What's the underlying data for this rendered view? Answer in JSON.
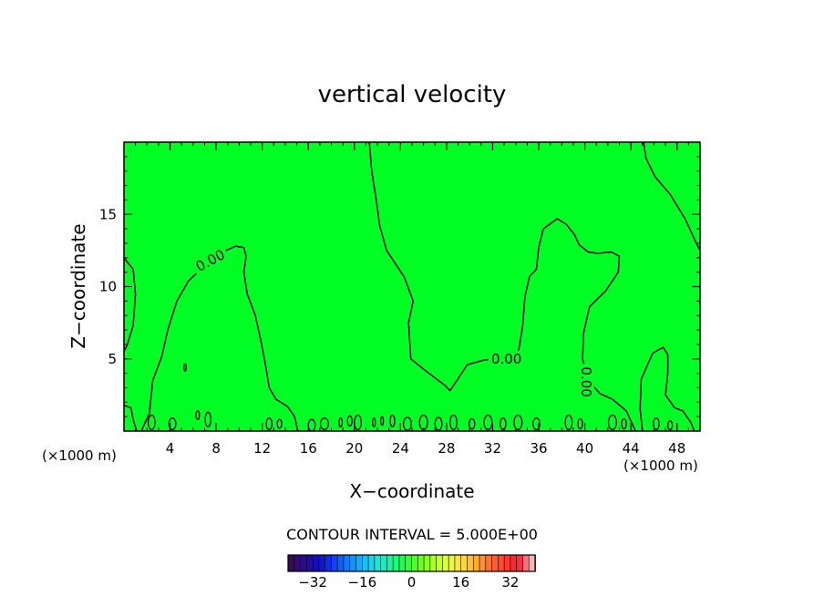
{
  "chart_data": {
    "type": "contour",
    "title": "vertical velocity",
    "xlabel": "X−coordinate",
    "ylabel": "Z−coordinate",
    "x_unit_left": "(×1000 m)",
    "x_unit_right": "(×1000 m)",
    "xlim": [
      0,
      50
    ],
    "ylim": [
      0,
      20
    ],
    "x_ticks": [
      4,
      8,
      12,
      16,
      20,
      24,
      28,
      32,
      36,
      40,
      44,
      48
    ],
    "y_ticks": [
      5,
      10,
      15
    ],
    "x_tick_labels": [
      "4",
      "8",
      "12",
      "16",
      "20",
      "24",
      "28",
      "32",
      "36",
      "40",
      "44",
      "48"
    ],
    "y_tick_labels": [
      "5",
      "10",
      "15"
    ],
    "fill_color": "#00ff22",
    "contour_labels": [
      {
        "text": "0.00",
        "x": 7.5,
        "y": 11.8,
        "angle": -28
      },
      {
        "text": "0.00",
        "x": 33.2,
        "y": 5.0,
        "angle": 0
      },
      {
        "text": "0.00",
        "x": 40.1,
        "y": 3.4,
        "angle": 90
      }
    ],
    "contour_lines": [
      [
        [
          1.5,
          0
        ],
        [
          2.2,
          1.2
        ],
        [
          2.5,
          3.5
        ],
        [
          3.3,
          5.2
        ],
        [
          3.8,
          7.0
        ],
        [
          4.6,
          9.0
        ],
        [
          5.6,
          10.4
        ],
        [
          6.8,
          11.3
        ],
        [
          8.3,
          12.3
        ],
        [
          9.7,
          12.8
        ],
        [
          10.4,
          12.7
        ],
        [
          10.6,
          12.1
        ],
        [
          10.4,
          11.0
        ],
        [
          10.7,
          9.5
        ],
        [
          11.4,
          8.0
        ],
        [
          11.9,
          6.2
        ],
        [
          12.3,
          4.5
        ],
        [
          12.6,
          3.0
        ],
        [
          13.2,
          2.2
        ],
        [
          14.2,
          1.7
        ],
        [
          14.8,
          1.0
        ],
        [
          15.1,
          0
        ]
      ],
      [
        [
          21.3,
          20
        ],
        [
          21.5,
          18.0
        ],
        [
          21.9,
          16.0
        ],
        [
          22.2,
          14.2
        ],
        [
          22.8,
          12.5
        ],
        [
          24.3,
          10.7
        ],
        [
          25.1,
          9.0
        ],
        [
          24.7,
          7.5
        ],
        [
          24.9,
          5.0
        ],
        [
          26.3,
          4.1
        ],
        [
          27.8,
          3.2
        ],
        [
          28.3,
          2.8
        ],
        [
          28.9,
          3.5
        ],
        [
          29.8,
          4.6
        ],
        [
          31.2,
          4.9
        ],
        [
          32.1,
          5.0
        ],
        [
          34.0,
          5.0
        ],
        [
          34.3,
          5.8
        ],
        [
          34.6,
          7.2
        ],
        [
          34.8,
          9.3
        ],
        [
          35.2,
          10.7
        ],
        [
          35.8,
          11.2
        ],
        [
          36.0,
          12.7
        ],
        [
          36.4,
          14.0
        ],
        [
          37.6,
          14.7
        ],
        [
          38.4,
          14.3
        ],
        [
          39.1,
          13.6
        ],
        [
          39.5,
          12.9
        ],
        [
          40.3,
          12.4
        ],
        [
          41.1,
          12.3
        ],
        [
          42.3,
          12.4
        ],
        [
          43.0,
          12.1
        ],
        [
          42.9,
          11.0
        ],
        [
          41.8,
          9.7
        ],
        [
          40.4,
          8.6
        ],
        [
          39.9,
          6.8
        ],
        [
          39.8,
          5.0
        ],
        [
          40.3,
          3.5
        ],
        [
          41.3,
          2.6
        ],
        [
          42.4,
          2.2
        ],
        [
          43.6,
          1.4
        ],
        [
          44.4,
          0
        ]
      ],
      [
        [
          45.1,
          20
        ],
        [
          45.3,
          18.9
        ],
        [
          46.1,
          17.6
        ],
        [
          47.4,
          16.4
        ],
        [
          48.7,
          14.7
        ],
        [
          49.5,
          13.3
        ],
        [
          50,
          12.5
        ]
      ],
      [
        [
          0,
          12
        ],
        [
          0.8,
          11.2
        ],
        [
          1.0,
          9.5
        ],
        [
          0.8,
          7.3
        ],
        [
          0.3,
          6.0
        ],
        [
          0,
          5.5
        ]
      ],
      [
        [
          45.0,
          0
        ],
        [
          44.8,
          1.5
        ],
        [
          44.9,
          3.6
        ],
        [
          45.9,
          5.4
        ],
        [
          46.8,
          5.8
        ],
        [
          47.2,
          5.3
        ],
        [
          47.2,
          4.0
        ],
        [
          47.0,
          2.5
        ],
        [
          47.8,
          1.6
        ],
        [
          48.5,
          1.4
        ],
        [
          49.2,
          0.6
        ],
        [
          49.5,
          0
        ]
      ],
      [
        [
          0,
          1.8
        ],
        [
          0.6,
          1.6
        ],
        [
          0.8,
          0.8
        ],
        [
          1.1,
          0
        ]
      ]
    ],
    "contour_blobs": [
      {
        "x": 2.4,
        "y": 0.6,
        "rx": 0.3,
        "ry": 0.5
      },
      {
        "x": 4.2,
        "y": 0.5,
        "rx": 0.3,
        "ry": 0.4
      },
      {
        "x": 5.3,
        "y": 4.4,
        "rx": 0.1,
        "ry": 0.25
      },
      {
        "x": 6.4,
        "y": 1.1,
        "rx": 0.15,
        "ry": 0.3
      },
      {
        "x": 7.3,
        "y": 0.8,
        "rx": 0.25,
        "ry": 0.5
      },
      {
        "x": 12.6,
        "y": 0.5,
        "rx": 0.25,
        "ry": 0.4
      },
      {
        "x": 13.5,
        "y": 0.5,
        "rx": 0.2,
        "ry": 0.3
      },
      {
        "x": 16.3,
        "y": 0.4,
        "rx": 0.3,
        "ry": 0.4
      },
      {
        "x": 17.4,
        "y": 0.5,
        "rx": 0.35,
        "ry": 0.4
      },
      {
        "x": 18.8,
        "y": 0.6,
        "rx": 0.15,
        "ry": 0.3
      },
      {
        "x": 19.6,
        "y": 0.7,
        "rx": 0.2,
        "ry": 0.35
      },
      {
        "x": 20.3,
        "y": 0.6,
        "rx": 0.3,
        "ry": 0.5
      },
      {
        "x": 21.7,
        "y": 0.6,
        "rx": 0.12,
        "ry": 0.3
      },
      {
        "x": 22.4,
        "y": 0.7,
        "rx": 0.12,
        "ry": 0.3
      },
      {
        "x": 23.3,
        "y": 0.7,
        "rx": 0.2,
        "ry": 0.4
      },
      {
        "x": 24.6,
        "y": 0.5,
        "rx": 0.35,
        "ry": 0.45
      },
      {
        "x": 26.0,
        "y": 0.6,
        "rx": 0.35,
        "ry": 0.5
      },
      {
        "x": 27.3,
        "y": 0.5,
        "rx": 0.3,
        "ry": 0.45
      },
      {
        "x": 28.6,
        "y": 0.6,
        "rx": 0.3,
        "ry": 0.5
      },
      {
        "x": 30.2,
        "y": 0.5,
        "rx": 0.25,
        "ry": 0.35
      },
      {
        "x": 31.6,
        "y": 0.6,
        "rx": 0.35,
        "ry": 0.5
      },
      {
        "x": 32.9,
        "y": 0.5,
        "rx": 0.25,
        "ry": 0.4
      },
      {
        "x": 34.2,
        "y": 0.6,
        "rx": 0.35,
        "ry": 0.5
      },
      {
        "x": 35.8,
        "y": 0.5,
        "rx": 0.3,
        "ry": 0.4
      },
      {
        "x": 38.6,
        "y": 0.6,
        "rx": 0.3,
        "ry": 0.5
      },
      {
        "x": 39.6,
        "y": 0.5,
        "rx": 0.2,
        "ry": 0.35
      },
      {
        "x": 42.4,
        "y": 0.6,
        "rx": 0.35,
        "ry": 0.5
      },
      {
        "x": 43.4,
        "y": 0.5,
        "rx": 0.2,
        "ry": 0.35
      },
      {
        "x": 46.2,
        "y": 0.5,
        "rx": 0.25,
        "ry": 0.4
      },
      {
        "x": 47.4,
        "y": 0.4,
        "rx": 0.2,
        "ry": 0.3
      }
    ],
    "colorbar": {
      "interval_label": "CONTOUR INTERVAL = 5.000E+00",
      "min": -40,
      "max": 40,
      "ticks": [
        -32,
        -16,
        0,
        16,
        32
      ],
      "tick_labels": [
        "−32",
        "−16",
        "0",
        "16",
        "32"
      ],
      "colors": [
        "#3a0a5a",
        "#2a0a90",
        "#1010c8",
        "#1040f0",
        "#1080ff",
        "#10b8ff",
        "#20e0e0",
        "#20f0a0",
        "#20ff40",
        "#60ff20",
        "#a8ff20",
        "#e0ff40",
        "#ffe040",
        "#ffb030",
        "#ff7030",
        "#ff4030",
        "#f02030",
        "#ffb0b0"
      ]
    }
  }
}
